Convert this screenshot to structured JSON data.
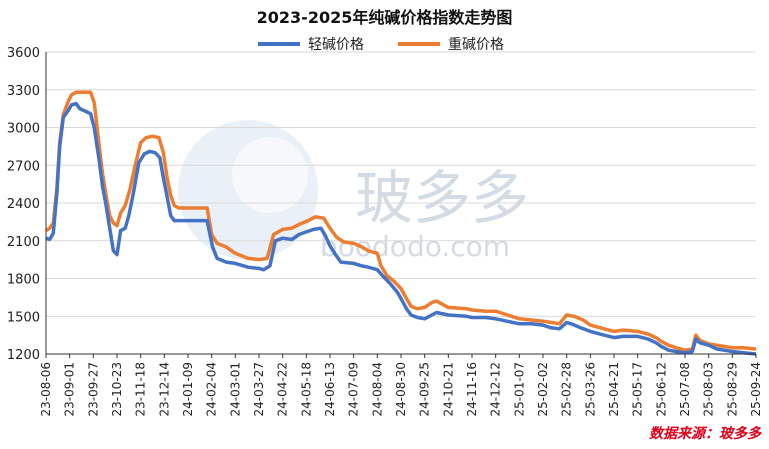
{
  "chart_data": {
    "type": "line",
    "title": "2023-2025年纯碱价格指数走势图",
    "xlabel": "",
    "ylabel": "",
    "ylim": [
      1200,
      3600
    ],
    "yticks": [
      1200,
      1500,
      1800,
      2100,
      2400,
      2700,
      3000,
      3300,
      3600
    ],
    "xticks": [
      "23-08-06",
      "23-09-01",
      "23-09-27",
      "23-10-23",
      "23-11-18",
      "23-12-14",
      "24-01-09",
      "24-02-04",
      "24-03-01",
      "24-03-27",
      "24-04-22",
      "24-05-18",
      "24-06-13",
      "24-07-09",
      "24-08-04",
      "24-08-30",
      "24-09-25",
      "24-10-21",
      "24-11-16",
      "24-12-12",
      "25-01-07",
      "25-02-02",
      "25-02-28",
      "25-03-26",
      "25-04-21",
      "25-05-17",
      "25-06-12",
      "25-07-08",
      "25-08-03",
      "25-08-29",
      "25-09-24"
    ],
    "grid": true,
    "legend_position": "top-center",
    "watermark": "玻多多 boododo.com",
    "source_note": "数据来源：玻多多",
    "series": [
      {
        "name": "轻碱价格",
        "color": "#4472c4",
        "points": [
          [
            "2023-08-06",
            2120
          ],
          [
            "2023-08-10",
            2110
          ],
          [
            "2023-08-14",
            2160
          ],
          [
            "2023-08-18",
            2480
          ],
          [
            "2023-08-21",
            2850
          ],
          [
            "2023-08-25",
            3080
          ],
          [
            "2023-08-30",
            3130
          ],
          [
            "2023-09-03",
            3180
          ],
          [
            "2023-09-08",
            3190
          ],
          [
            "2023-09-12",
            3150
          ],
          [
            "2023-09-18",
            3130
          ],
          [
            "2023-09-24",
            3110
          ],
          [
            "2023-09-28",
            3000
          ],
          [
            "2023-10-03",
            2760
          ],
          [
            "2023-10-07",
            2540
          ],
          [
            "2023-10-11",
            2380
          ],
          [
            "2023-10-15",
            2200
          ],
          [
            "2023-10-19",
            2020
          ],
          [
            "2023-10-23",
            1990
          ],
          [
            "2023-10-27",
            2180
          ],
          [
            "2023-11-01",
            2200
          ],
          [
            "2023-11-05",
            2300
          ],
          [
            "2023-11-10",
            2480
          ],
          [
            "2023-11-16",
            2720
          ],
          [
            "2023-11-22",
            2790
          ],
          [
            "2023-11-28",
            2810
          ],
          [
            "2023-12-04",
            2800
          ],
          [
            "2023-12-09",
            2760
          ],
          [
            "2023-12-13",
            2600
          ],
          [
            "2023-12-17",
            2450
          ],
          [
            "2023-12-21",
            2300
          ],
          [
            "2023-12-25",
            2260
          ],
          [
            "2024-01-09",
            2260
          ],
          [
            "2024-01-30",
            2260
          ],
          [
            "2024-02-05",
            2050
          ],
          [
            "2024-02-10",
            1960
          ],
          [
            "2024-02-20",
            1930
          ],
          [
            "2024-03-01",
            1920
          ],
          [
            "2024-03-15",
            1890
          ],
          [
            "2024-03-27",
            1880
          ],
          [
            "2024-04-01",
            1870
          ],
          [
            "2024-04-08",
            1900
          ],
          [
            "2024-04-14",
            2100
          ],
          [
            "2024-04-22",
            2120
          ],
          [
            "2024-05-02",
            2110
          ],
          [
            "2024-05-10",
            2150
          ],
          [
            "2024-05-18",
            2170
          ],
          [
            "2024-05-26",
            2190
          ],
          [
            "2024-06-03",
            2200
          ],
          [
            "2024-06-08",
            2140
          ],
          [
            "2024-06-13",
            2060
          ],
          [
            "2024-06-18",
            2000
          ],
          [
            "2024-06-25",
            1930
          ],
          [
            "2024-07-09",
            1920
          ],
          [
            "2024-07-18",
            1900
          ],
          [
            "2024-07-25",
            1890
          ],
          [
            "2024-08-04",
            1870
          ],
          [
            "2024-08-10",
            1820
          ],
          [
            "2024-08-18",
            1760
          ],
          [
            "2024-08-26",
            1690
          ],
          [
            "2024-08-30",
            1640
          ],
          [
            "2024-09-05",
            1560
          ],
          [
            "2024-09-10",
            1510
          ],
          [
            "2024-09-17",
            1490
          ],
          [
            "2024-09-25",
            1480
          ],
          [
            "2024-10-03",
            1510
          ],
          [
            "2024-10-08",
            1530
          ],
          [
            "2024-10-21",
            1510
          ],
          [
            "2024-11-10",
            1500
          ],
          [
            "2024-11-16",
            1490
          ],
          [
            "2024-12-01",
            1490
          ],
          [
            "2024-12-12",
            1480
          ],
          [
            "2024-12-25",
            1460
          ],
          [
            "2025-01-07",
            1440
          ],
          [
            "2025-01-20",
            1440
          ],
          [
            "2025-02-02",
            1430
          ],
          [
            "2025-02-10",
            1410
          ],
          [
            "2025-02-20",
            1400
          ],
          [
            "2025-02-28",
            1450
          ],
          [
            "2025-03-05",
            1440
          ],
          [
            "2025-03-15",
            1410
          ],
          [
            "2025-03-26",
            1380
          ],
          [
            "2025-04-10",
            1350
          ],
          [
            "2025-04-21",
            1330
          ],
          [
            "2025-05-01",
            1340
          ],
          [
            "2025-05-17",
            1340
          ],
          [
            "2025-05-28",
            1320
          ],
          [
            "2025-06-06",
            1290
          ],
          [
            "2025-06-12",
            1260
          ],
          [
            "2025-06-20",
            1230
          ],
          [
            "2025-06-28",
            1220
          ],
          [
            "2025-07-08",
            1210
          ],
          [
            "2025-07-16",
            1220
          ],
          [
            "2025-07-20",
            1320
          ],
          [
            "2025-07-24",
            1290
          ],
          [
            "2025-08-03",
            1270
          ],
          [
            "2025-08-12",
            1240
          ],
          [
            "2025-08-20",
            1230
          ],
          [
            "2025-08-29",
            1220
          ],
          [
            "2025-09-10",
            1210
          ],
          [
            "2025-09-24",
            1200
          ]
        ]
      },
      {
        "name": "重碱价格",
        "color": "#ed7d31",
        "points": [
          [
            "2023-08-06",
            2180
          ],
          [
            "2023-08-10",
            2200
          ],
          [
            "2023-08-14",
            2240
          ],
          [
            "2023-08-18",
            2520
          ],
          [
            "2023-08-21",
            2880
          ],
          [
            "2023-08-25",
            3100
          ],
          [
            "2023-08-30",
            3200
          ],
          [
            "2023-09-03",
            3260
          ],
          [
            "2023-09-08",
            3280
          ],
          [
            "2023-09-14",
            3280
          ],
          [
            "2023-09-24",
            3280
          ],
          [
            "2023-09-28",
            3200
          ],
          [
            "2023-10-03",
            2880
          ],
          [
            "2023-10-07",
            2640
          ],
          [
            "2023-10-11",
            2460
          ],
          [
            "2023-10-15",
            2300
          ],
          [
            "2023-10-19",
            2240
          ],
          [
            "2023-10-23",
            2220
          ],
          [
            "2023-10-27",
            2320
          ],
          [
            "2023-11-01",
            2380
          ],
          [
            "2023-11-06",
            2500
          ],
          [
            "2023-11-12",
            2700
          ],
          [
            "2023-11-18",
            2880
          ],
          [
            "2023-11-24",
            2920
          ],
          [
            "2023-12-01",
            2930
          ],
          [
            "2023-12-08",
            2920
          ],
          [
            "2023-12-13",
            2800
          ],
          [
            "2023-12-17",
            2600
          ],
          [
            "2023-12-21",
            2460
          ],
          [
            "2023-12-25",
            2380
          ],
          [
            "2023-12-30",
            2360
          ],
          [
            "2024-01-20",
            2360
          ],
          [
            "2024-01-30",
            2360
          ],
          [
            "2024-02-04",
            2150
          ],
          [
            "2024-02-10",
            2080
          ],
          [
            "2024-02-20",
            2050
          ],
          [
            "2024-03-01",
            2000
          ],
          [
            "2024-03-15",
            1960
          ],
          [
            "2024-03-27",
            1950
          ],
          [
            "2024-04-05",
            1960
          ],
          [
            "2024-04-12",
            2150
          ],
          [
            "2024-04-22",
            2190
          ],
          [
            "2024-05-02",
            2200
          ],
          [
            "2024-05-10",
            2230
          ],
          [
            "2024-05-20",
            2260
          ],
          [
            "2024-05-28",
            2290
          ],
          [
            "2024-06-06",
            2280
          ],
          [
            "2024-06-13",
            2200
          ],
          [
            "2024-06-20",
            2130
          ],
          [
            "2024-06-28",
            2090
          ],
          [
            "2024-07-09",
            2080
          ],
          [
            "2024-07-18",
            2050
          ],
          [
            "2024-07-25",
            2020
          ],
          [
            "2024-08-04",
            2000
          ],
          [
            "2024-08-08",
            1900
          ],
          [
            "2024-08-15",
            1820
          ],
          [
            "2024-08-22",
            1780
          ],
          [
            "2024-08-30",
            1720
          ],
          [
            "2024-09-05",
            1640
          ],
          [
            "2024-09-10",
            1580
          ],
          [
            "2024-09-17",
            1560
          ],
          [
            "2024-09-25",
            1570
          ],
          [
            "2024-10-03",
            1610
          ],
          [
            "2024-10-08",
            1620
          ],
          [
            "2024-10-21",
            1570
          ],
          [
            "2024-11-10",
            1560
          ],
          [
            "2024-11-16",
            1550
          ],
          [
            "2024-12-01",
            1540
          ],
          [
            "2024-12-12",
            1540
          ],
          [
            "2024-12-25",
            1510
          ],
          [
            "2025-01-07",
            1480
          ],
          [
            "2025-01-20",
            1470
          ],
          [
            "2025-02-02",
            1460
          ],
          [
            "2025-02-12",
            1450
          ],
          [
            "2025-02-20",
            1440
          ],
          [
            "2025-02-28",
            1510
          ],
          [
            "2025-03-08",
            1500
          ],
          [
            "2025-03-18",
            1470
          ],
          [
            "2025-03-26",
            1430
          ],
          [
            "2025-04-10",
            1400
          ],
          [
            "2025-04-21",
            1380
          ],
          [
            "2025-05-01",
            1390
          ],
          [
            "2025-05-17",
            1380
          ],
          [
            "2025-05-28",
            1360
          ],
          [
            "2025-06-06",
            1330
          ],
          [
            "2025-06-12",
            1300
          ],
          [
            "2025-06-20",
            1270
          ],
          [
            "2025-06-28",
            1250
          ],
          [
            "2025-07-08",
            1230
          ],
          [
            "2025-07-16",
            1240
          ],
          [
            "2025-07-20",
            1350
          ],
          [
            "2025-07-24",
            1310
          ],
          [
            "2025-08-03",
            1280
          ],
          [
            "2025-08-12",
            1270
          ],
          [
            "2025-08-20",
            1260
          ],
          [
            "2025-08-29",
            1250
          ],
          [
            "2025-09-10",
            1250
          ],
          [
            "2025-09-24",
            1240
          ]
        ]
      }
    ]
  }
}
